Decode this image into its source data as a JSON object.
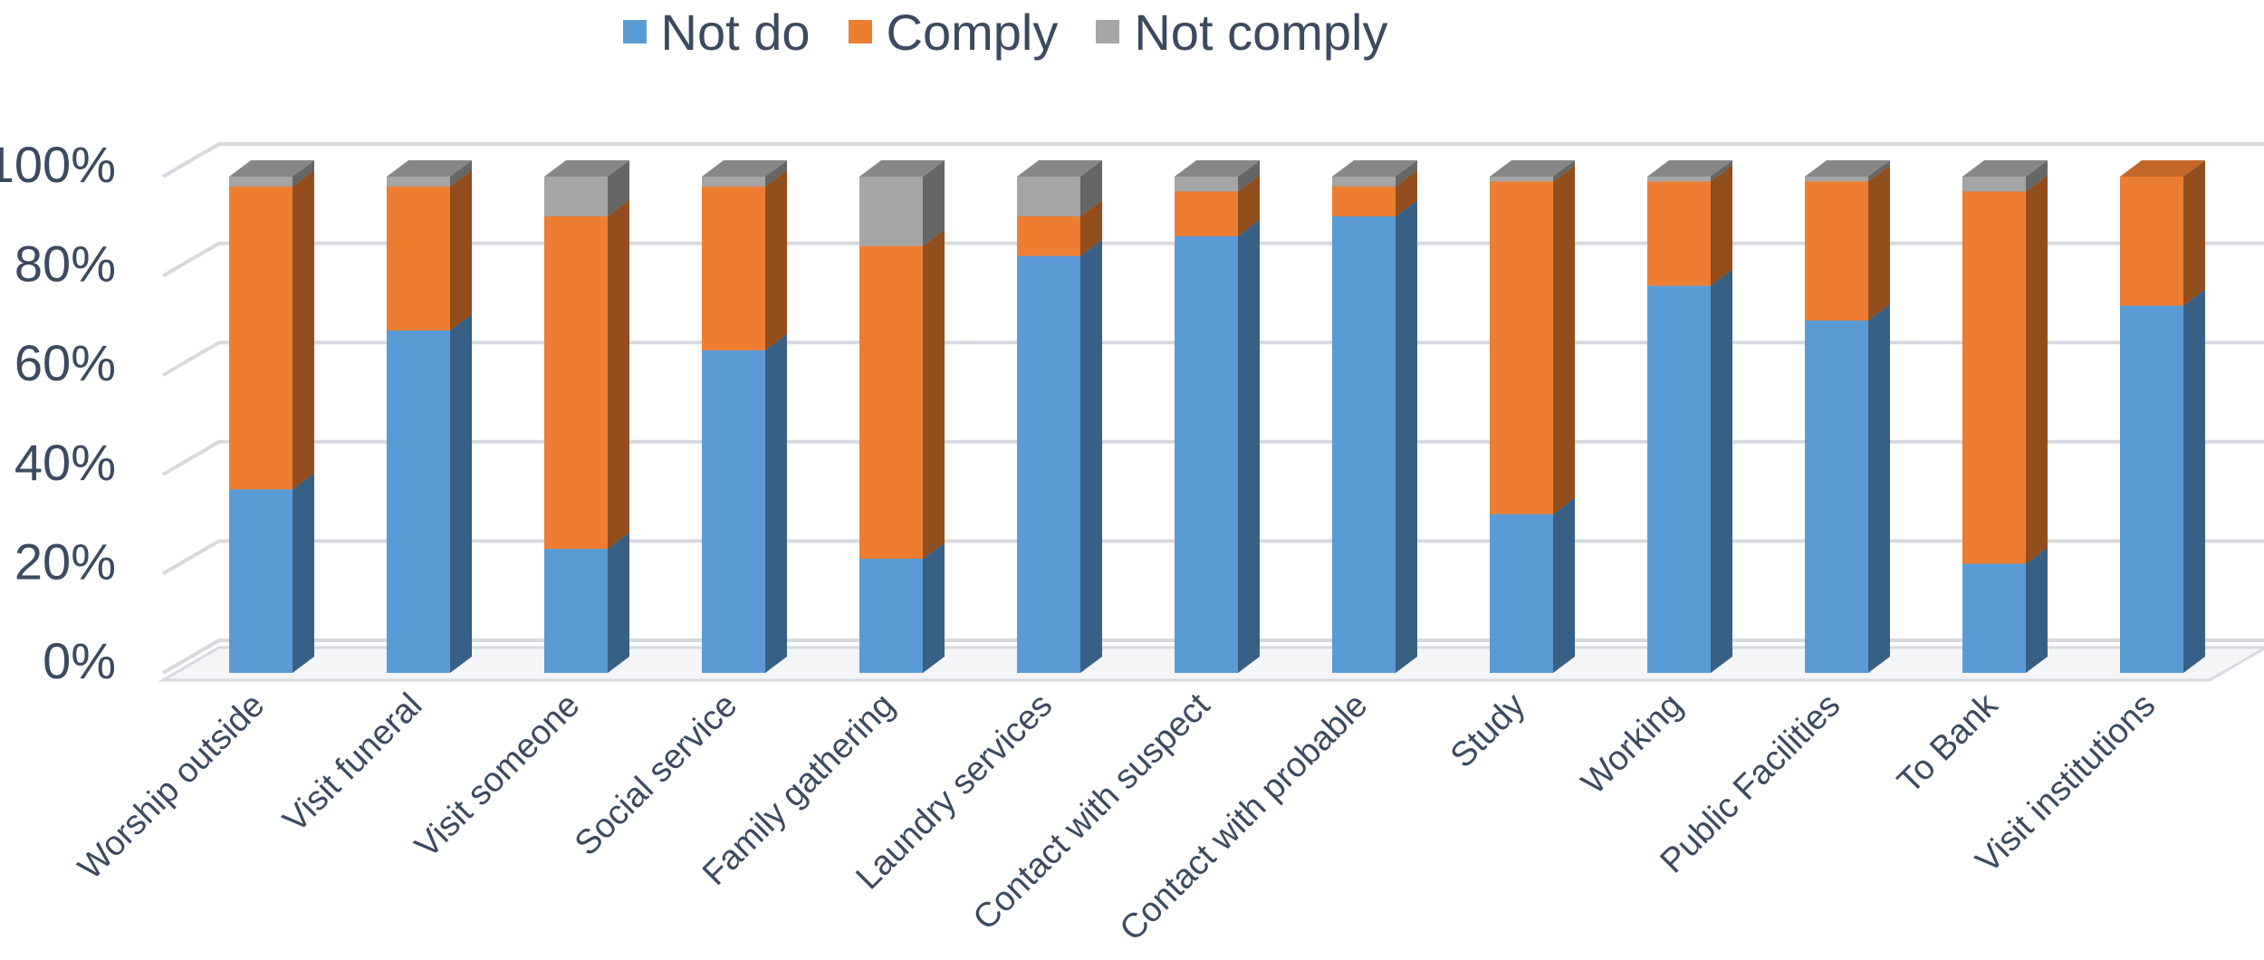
{
  "chart_data": {
    "type": "bar",
    "stacked": true,
    "three_d": true,
    "title": "",
    "xlabel": "",
    "ylabel": "",
    "ylim": [
      0,
      100
    ],
    "y_tick_labels": [
      "0%",
      "20%",
      "40%",
      "60%",
      "80%",
      "100%"
    ],
    "y_ticks": [
      0,
      20,
      40,
      60,
      80,
      100
    ],
    "grid": true,
    "legend_position": "top-center",
    "categories": [
      "Worship outside",
      "Visit funeral",
      "Visit someone",
      "Social service",
      "Family gathering",
      "Laundry services",
      "Contact with suspect",
      "Contact with probable",
      "Study",
      "Working",
      "Public Facilities",
      "To Bank",
      "Visit institutions"
    ],
    "series": [
      {
        "name": "Not do",
        "color": "#5b9bd5",
        "values": [
          37,
          69,
          25,
          65,
          23,
          84,
          88,
          92,
          32,
          78,
          71,
          22,
          74
        ]
      },
      {
        "name": "Comply",
        "color": "#ed7d31",
        "values": [
          61,
          29,
          67,
          33,
          63,
          8,
          9,
          6,
          67,
          21,
          28,
          75,
          26
        ]
      },
      {
        "name": "Not comply",
        "color": "#a5a5a5",
        "values": [
          2,
          2,
          8,
          2,
          14,
          8,
          3,
          2,
          1,
          1,
          1,
          3,
          0
        ]
      }
    ]
  }
}
